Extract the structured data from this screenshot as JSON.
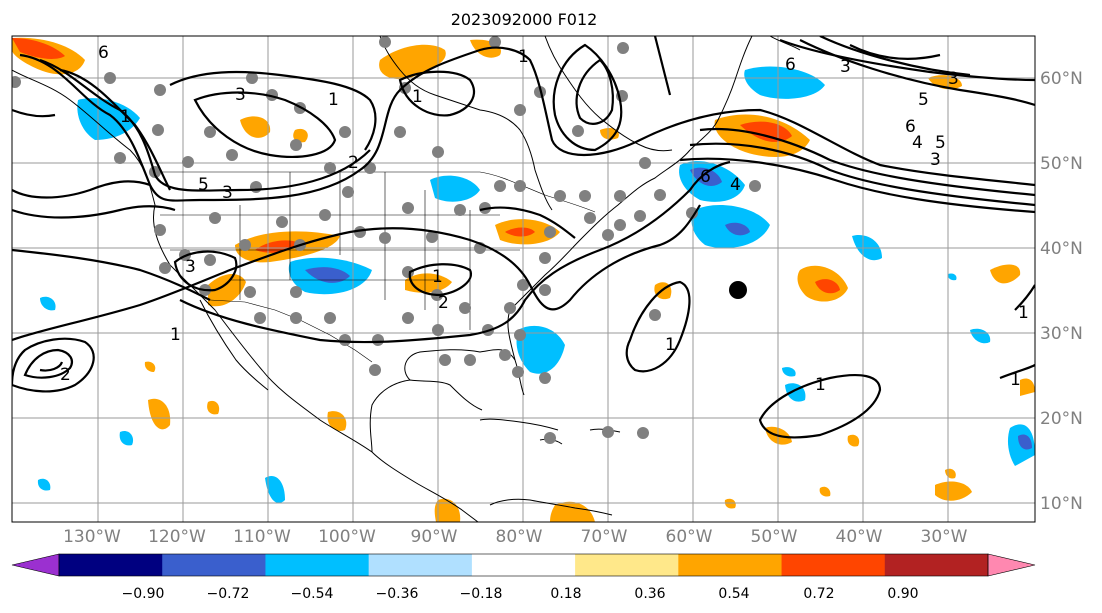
{
  "title": "2023092000 F012",
  "lat_labels": [
    "60°N",
    "50°N",
    "40°N",
    "30°N",
    "20°N",
    "10°N"
  ],
  "lon_labels": [
    "130°W",
    "120°W",
    "110°W",
    "100°W",
    "90°W",
    "80°W",
    "70°W",
    "60°W",
    "50°W",
    "40°W",
    "30°W"
  ],
  "colorbar": {
    "tick_labels": [
      "−0.90",
      "−0.72",
      "−0.54",
      "−0.36",
      "−0.18",
      "0.18",
      "0.36",
      "0.54",
      "0.72",
      "0.90"
    ],
    "colors": [
      "#9b30d0",
      "#000080",
      "#3a5fcd",
      "#00bfff",
      "#b0e0ff",
      "#ffffff",
      "#ffe88a",
      "#ffa500",
      "#ff4500",
      "#b22222",
      "#ff88b0"
    ]
  },
  "contour_labels": [
    "6",
    "3",
    "5",
    "3",
    "1",
    "1",
    "2",
    "1",
    "3",
    "6",
    "3",
    "5",
    "3",
    "5",
    "4",
    "6",
    "1",
    "1",
    "2",
    "1",
    "1",
    "1",
    "3",
    "2",
    "1",
    "6",
    "4",
    "1"
  ],
  "legend_colors": {
    "positive_fill": "#ffa500",
    "positive_core": "#ff4500",
    "negative_fill": "#00bfff",
    "negative_core": "#3a5fcd",
    "dots": "#808080",
    "marker": "#000000"
  }
}
